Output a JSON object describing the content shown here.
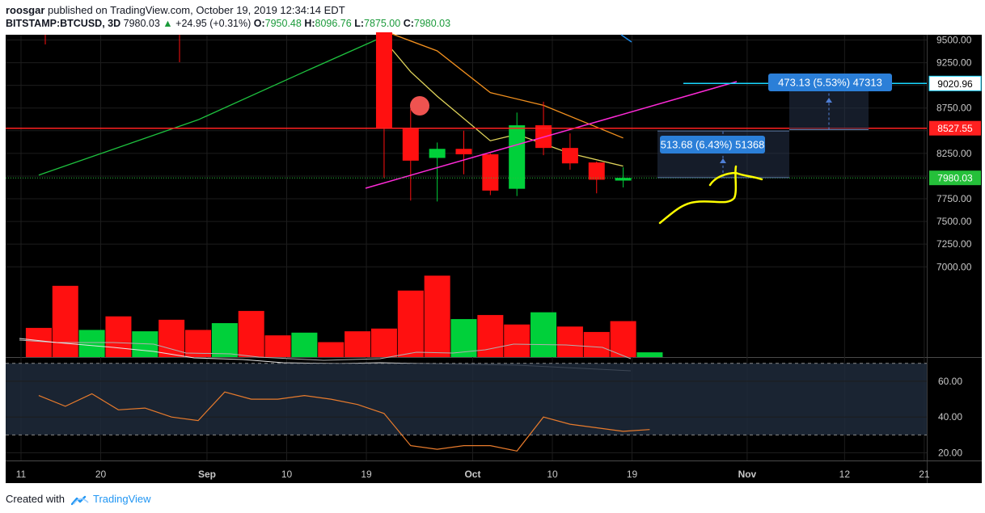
{
  "header": {
    "author": "roosgar",
    "published_text": "published on TradingView.com, October 19, 2019 12:34:14 EDT",
    "symbol": "BITSTAMP:BTCUSD, 3D",
    "last": "7980.03",
    "change": "+24.95 (+0.31%)",
    "o_label": "O:",
    "o_value": "7950.48",
    "h_label": "H:",
    "h_value": "8096.76",
    "l_label": "L:",
    "l_value": "7875.00",
    "c_label": "C:",
    "c_value": "7980.03"
  },
  "footer": {
    "created_with": "Created with",
    "brand": "TradingView"
  },
  "colors": {
    "background": "#000000",
    "up": "#00d03a",
    "down": "#ff1010",
    "ema_green": "#1ec23f",
    "ema_yellow": "#e0d45a",
    "ema_orange": "#f2901e",
    "trend_magenta": "#ff2ad8",
    "resistance_red": "#ff2020",
    "target_cyan": "#19d8ff",
    "price_green": "#25c03a",
    "rsi_orange": "#e87b2c",
    "drawing_yellow": "#ffff00",
    "label_blue": "#2b7fd8"
  },
  "chart_data": {
    "type": "candlestick",
    "symbol": "BITSTAMP:BTCUSD",
    "timeframe": "3D",
    "ylim": [
      7650,
      9560
    ],
    "price_ticks": [
      "9500.00",
      "9250.00",
      "9000.00",
      "8750.00",
      "8500.00",
      "8250.00",
      "8000.00",
      "7750.00",
      "7500.00",
      "7250.00",
      "7000.00"
    ],
    "x_ticks": [
      "11",
      "20",
      "Sep",
      "10",
      "19",
      "Oct",
      "10",
      "19",
      "Nov",
      "12",
      "21"
    ],
    "candles": [
      {
        "date": "Sep 21",
        "o": 9600,
        "h": 9650,
        "l": 7980,
        "c": 8520
      },
      {
        "date": "Sep 24",
        "o": 8520,
        "h": 8740,
        "l": 7730,
        "c": 8170
      },
      {
        "date": "Sep 27",
        "o": 8200,
        "h": 8370,
        "l": 7720,
        "c": 8300
      },
      {
        "date": "Sep 30",
        "o": 8300,
        "h": 8500,
        "l": 8020,
        "c": 8240
      },
      {
        "date": "Oct 3",
        "o": 8240,
        "h": 8250,
        "l": 7790,
        "c": 7840
      },
      {
        "date": "Oct 6",
        "o": 7860,
        "h": 8700,
        "l": 7780,
        "c": 8560
      },
      {
        "date": "Oct 9",
        "o": 8560,
        "h": 8820,
        "l": 8230,
        "c": 8310
      },
      {
        "date": "Oct 12",
        "o": 8310,
        "h": 8470,
        "l": 8070,
        "c": 8140
      },
      {
        "date": "Oct 15",
        "o": 8150,
        "h": 8160,
        "l": 7810,
        "c": 7960
      },
      {
        "date": "Oct 18",
        "o": 7950.48,
        "h": 8096.76,
        "l": 7875.0,
        "c": 7980.03
      }
    ],
    "overlays": {
      "ema_green": [
        {
          "date": "Aug 13",
          "v": 8010
        },
        {
          "date": "Aug 31",
          "v": 8620
        },
        {
          "date": "Sep 12",
          "v": 9150
        },
        {
          "date": "Sep 21",
          "v": 9540
        }
      ],
      "ema_yellow": [
        {
          "date": "Sep 21",
          "v": 9500
        },
        {
          "date": "Sep 24",
          "v": 9150
        },
        {
          "date": "Sep 27",
          "v": 8880
        },
        {
          "date": "Oct 3",
          "v": 8390
        },
        {
          "date": "Oct 6",
          "v": 8460
        },
        {
          "date": "Oct 12",
          "v": 8250
        },
        {
          "date": "Oct 18",
          "v": 8110
        }
      ],
      "ema_orange": [
        {
          "date": "Sep 21",
          "v": 9600
        },
        {
          "date": "Sep 27",
          "v": 9380
        },
        {
          "date": "Oct 3",
          "v": 8920
        },
        {
          "date": "Oct 9",
          "v": 8780
        },
        {
          "date": "Oct 18",
          "v": 8420
        }
      ]
    },
    "price_levels": [
      {
        "value": 8527.55,
        "label": "8527.55",
        "color": "#ff2020"
      },
      {
        "value": 9020.96,
        "label": "9020.96",
        "color": "#19d8ff"
      },
      {
        "value": 7980.03,
        "label": "7980.03",
        "color": "#25c03a"
      }
    ],
    "measure_boxes": [
      {
        "label": "513.68 (6.43%) 51368"
      },
      {
        "label": "473.13 (5.53%) 47313"
      }
    ],
    "volume": [
      {
        "date": "Aug 13",
        "v": 43,
        "up": false
      },
      {
        "date": "Aug 16",
        "v": 105,
        "up": false
      },
      {
        "date": "Aug 19",
        "v": 40,
        "up": true
      },
      {
        "date": "Aug 22",
        "v": 60,
        "up": false
      },
      {
        "date": "Aug 25",
        "v": 38,
        "up": true
      },
      {
        "date": "Aug 28",
        "v": 55,
        "up": false
      },
      {
        "date": "Aug 31",
        "v": 40,
        "up": false
      },
      {
        "date": "Sep 3",
        "v": 50,
        "up": true
      },
      {
        "date": "Sep 6",
        "v": 68,
        "up": false
      },
      {
        "date": "Sep 9",
        "v": 32,
        "up": false
      },
      {
        "date": "Sep 12",
        "v": 36,
        "up": true
      },
      {
        "date": "Sep 15",
        "v": 22,
        "up": false
      },
      {
        "date": "Sep 18",
        "v": 38,
        "up": false
      },
      {
        "date": "Sep 21",
        "v": 42,
        "up": false
      },
      {
        "date": "Sep 24",
        "v": 98,
        "up": false
      },
      {
        "date": "Sep 27",
        "v": 120,
        "up": false
      },
      {
        "date": "Sep 30",
        "v": 56,
        "up": true
      },
      {
        "date": "Oct 3",
        "v": 62,
        "up": false
      },
      {
        "date": "Oct 6",
        "v": 48,
        "up": false
      },
      {
        "date": "Oct 9",
        "v": 66,
        "up": true
      },
      {
        "date": "Oct 12",
        "v": 45,
        "up": false
      },
      {
        "date": "Oct 15",
        "v": 37,
        "up": false
      },
      {
        "date": "Oct 18",
        "v": 53,
        "up": false
      },
      {
        "date": "Oct 21",
        "v": 7,
        "up": true
      }
    ],
    "rsi": {
      "ticks": [
        "60.00",
        "40.00",
        "20.00"
      ],
      "upper": 70,
      "lower": 30,
      "values": [
        {
          "date": "Aug 13",
          "v": 52
        },
        {
          "date": "Aug 16",
          "v": 46
        },
        {
          "date": "Aug 19",
          "v": 53
        },
        {
          "date": "Aug 22",
          "v": 44
        },
        {
          "date": "Aug 25",
          "v": 45
        },
        {
          "date": "Aug 28",
          "v": 40
        },
        {
          "date": "Aug 31",
          "v": 38
        },
        {
          "date": "Sep 3",
          "v": 54
        },
        {
          "date": "Sep 6",
          "v": 50
        },
        {
          "date": "Sep 9",
          "v": 50
        },
        {
          "date": "Sep 12",
          "v": 52
        },
        {
          "date": "Sep 15",
          "v": 50
        },
        {
          "date": "Sep 18",
          "v": 47
        },
        {
          "date": "Sep 21",
          "v": 42
        },
        {
          "date": "Sep 24",
          "v": 24
        },
        {
          "date": "Sep 27",
          "v": 22
        },
        {
          "date": "Sep 30",
          "v": 24
        },
        {
          "date": "Oct 3",
          "v": 24
        },
        {
          "date": "Oct 6",
          "v": 21
        },
        {
          "date": "Oct 9",
          "v": 40
        },
        {
          "date": "Oct 12",
          "v": 36
        },
        {
          "date": "Oct 15",
          "v": 34
        },
        {
          "date": "Oct 18",
          "v": 32
        },
        {
          "date": "Oct 21",
          "v": 33
        }
      ]
    }
  }
}
